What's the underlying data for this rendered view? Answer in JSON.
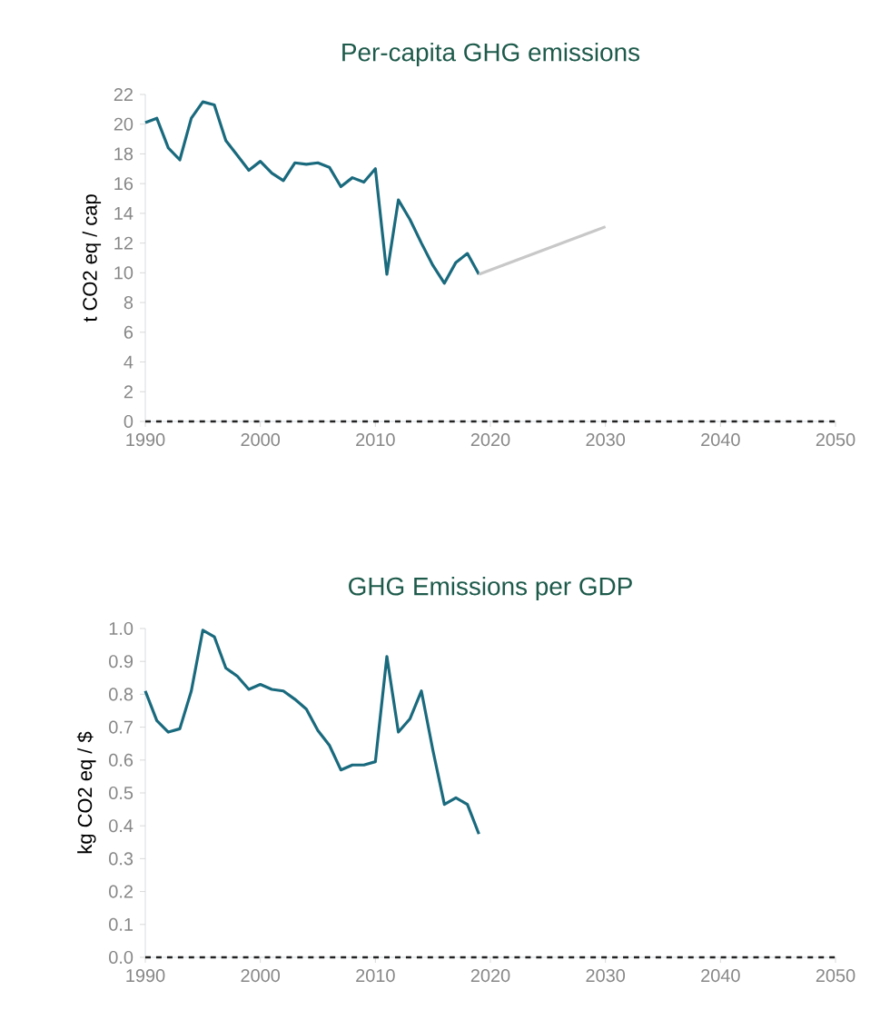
{
  "chart_data": [
    {
      "type": "line",
      "title": "Per-capita GHG emissions",
      "ylabel": "t CO2 eq / cap",
      "xlim": [
        1990,
        2050
      ],
      "xticks": [
        1990,
        2000,
        2010,
        2020,
        2030,
        2040,
        2050
      ],
      "ylim": [
        0,
        22
      ],
      "yticks": [
        0,
        2,
        4,
        6,
        8,
        10,
        12,
        14,
        16,
        18,
        20,
        22
      ],
      "grid": false,
      "marker": "none",
      "line_style": "solid",
      "x": [
        1990,
        1991,
        1992,
        1993,
        1994,
        1995,
        1996,
        1997,
        1998,
        1999,
        2000,
        2001,
        2002,
        2003,
        2004,
        2005,
        2006,
        2007,
        2008,
        2009,
        2010,
        2011,
        2012,
        2013,
        2014,
        2015,
        2016,
        2017,
        2018,
        2019
      ],
      "series": [
        {
          "color": "#1a6a7e",
          "values": [
            20.1,
            20.4,
            18.4,
            17.6,
            20.4,
            21.5,
            21.3,
            18.9,
            17.9,
            16.9,
            17.5,
            16.7,
            16.2,
            17.4,
            17.3,
            17.4,
            17.1,
            15.8,
            16.4,
            16.1,
            17.0,
            9.9,
            14.9,
            13.6,
            12.0,
            10.5,
            9.3,
            10.7,
            11.3,
            9.9
          ]
        },
        {
          "color": "#c8c8c8",
          "x": [
            2019,
            2030
          ],
          "values": [
            9.9,
            13.1
          ]
        }
      ],
      "ref_lines": [
        {
          "axis": "y",
          "value": 0,
          "color": "#222222",
          "line_style": "dashed"
        }
      ]
    },
    {
      "type": "line",
      "title": "GHG Emissions per GDP",
      "ylabel": "kg CO2 eq / $",
      "xlim": [
        1990,
        2050
      ],
      "xticks": [
        1990,
        2000,
        2010,
        2020,
        2030,
        2040,
        2050
      ],
      "ylim": [
        0,
        1.0
      ],
      "yticks": [
        {
          "value": 0,
          "label": "0.0"
        },
        0.1,
        0.2,
        0.3,
        0.4,
        0.5,
        0.6,
        0.7,
        0.8,
        0.9,
        {
          "value": 1.0,
          "label": "1.0"
        }
      ],
      "grid": false,
      "marker": "none",
      "line_style": "solid",
      "x": [
        1990,
        1991,
        1992,
        1993,
        1994,
        1995,
        1996,
        1997,
        1998,
        1999,
        2000,
        2001,
        2002,
        2003,
        2004,
        2005,
        2006,
        2007,
        2008,
        2009,
        2010,
        2011,
        2012,
        2013,
        2014,
        2015,
        2016,
        2017,
        2018,
        2019
      ],
      "series": [
        {
          "color": "#1a6a7e",
          "values": [
            0.81,
            0.72,
            0.685,
            0.695,
            0.81,
            0.995,
            0.975,
            0.88,
            0.855,
            0.815,
            0.83,
            0.815,
            0.81,
            0.785,
            0.755,
            0.69,
            0.645,
            0.57,
            0.585,
            0.585,
            0.595,
            0.915,
            0.685,
            0.725,
            0.81,
            0.63,
            0.465,
            0.485,
            0.465,
            0.375
          ]
        }
      ],
      "ref_lines": [
        {
          "axis": "y",
          "value": 0,
          "color": "#222222",
          "line_style": "dashed"
        }
      ]
    }
  ]
}
